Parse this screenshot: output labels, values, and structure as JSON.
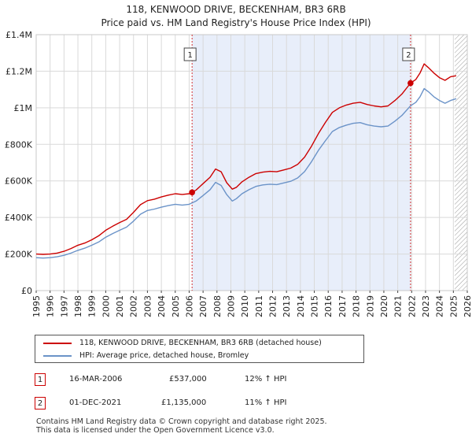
{
  "title_line1": "118, KENWOOD DRIVE, BECKENHAM, BR3 6RB",
  "title_line2": "Price paid vs. HM Land Registry's House Price Index (HPI)",
  "legend": {
    "series1": "118, KENWOOD DRIVE, BECKENHAM, BR3 6RB (detached house)",
    "series2": "HPI: Average price, detached house, Bromley"
  },
  "transactions": [
    {
      "label": "1",
      "date": "16-MAR-2006",
      "price": "£537,000",
      "hpi": "12% ↑ HPI"
    },
    {
      "label": "2",
      "date": "01-DEC-2021",
      "price": "£1,135,000",
      "hpi": "11% ↑ HPI"
    }
  ],
  "footer": {
    "line1": "Contains HM Land Registry data © Crown copyright and database right 2025.",
    "line2": "This data is licensed under the Open Government Licence v3.0."
  },
  "colors": {
    "property": "#cc0000",
    "hpi": "#6b93c8",
    "shade": "#e8eefa",
    "grid": "#d9d9d9"
  },
  "chart_data": {
    "type": "line",
    "title": "Price paid vs. HM Land Registry's House Price Index (HPI)",
    "xlabel": "",
    "ylabel": "",
    "xlim": [
      1995,
      2026
    ],
    "ylim": [
      0,
      1400000
    ],
    "xticks": [
      1995,
      1996,
      1997,
      1998,
      1999,
      2000,
      2001,
      2002,
      2003,
      2004,
      2005,
      2006,
      2007,
      2008,
      2009,
      2010,
      2011,
      2012,
      2013,
      2014,
      2015,
      2016,
      2017,
      2018,
      2019,
      2020,
      2021,
      2022,
      2023,
      2024,
      2025,
      2026
    ],
    "yticks": [
      0,
      200000,
      400000,
      600000,
      800000,
      1000000,
      1200000,
      1400000
    ],
    "ytick_labels": [
      "£0",
      "£200K",
      "£400K",
      "£600K",
      "£800K",
      "£1M",
      "£1.2M",
      "£1.4M"
    ],
    "grid": true,
    "shaded_range": [
      2006.21,
      2021.92
    ],
    "future_hatch_from": 2025.1,
    "series": [
      {
        "name": "118, KENWOOD DRIVE, BECKENHAM, BR3 6RB (detached house)",
        "color": "#cc0000",
        "x": [
          1995.0,
          1995.5,
          1996.0,
          1996.5,
          1997.0,
          1997.5,
          1998.0,
          1998.5,
          1999.0,
          1999.5,
          2000.0,
          2000.5,
          2001.0,
          2001.5,
          2002.0,
          2002.5,
          2003.0,
          2003.5,
          2004.0,
          2004.5,
          2005.0,
          2005.5,
          2006.0,
          2006.21,
          2006.5,
          2007.0,
          2007.5,
          2007.9,
          2008.3,
          2008.7,
          2009.1,
          2009.4,
          2009.8,
          2010.3,
          2010.8,
          2011.3,
          2011.8,
          2012.3,
          2012.8,
          2013.3,
          2013.8,
          2014.3,
          2014.8,
          2015.3,
          2015.8,
          2016.3,
          2016.8,
          2017.3,
          2017.8,
          2018.3,
          2018.8,
          2019.3,
          2019.8,
          2020.3,
          2020.8,
          2021.3,
          2021.92,
          2022.3,
          2022.6,
          2022.9,
          2023.2,
          2023.6,
          2024.0,
          2024.4,
          2024.8,
          2025.2
        ],
        "values": [
          200000,
          198000,
          200000,
          205000,
          215000,
          230000,
          248000,
          260000,
          278000,
          300000,
          330000,
          352000,
          372000,
          390000,
          428000,
          470000,
          492000,
          500000,
          512000,
          522000,
          530000,
          526000,
          530000,
          537000,
          550000,
          585000,
          620000,
          665000,
          650000,
          590000,
          555000,
          565000,
          595000,
          620000,
          640000,
          648000,
          652000,
          650000,
          660000,
          670000,
          690000,
          730000,
          790000,
          860000,
          920000,
          975000,
          1000000,
          1015000,
          1025000,
          1030000,
          1018000,
          1010000,
          1005000,
          1010000,
          1040000,
          1075000,
          1135000,
          1155000,
          1190000,
          1240000,
          1220000,
          1190000,
          1165000,
          1150000,
          1170000,
          1175000
        ]
      },
      {
        "name": "HPI: Average price, detached house, Bromley",
        "color": "#6b93c8",
        "x": [
          1995.0,
          1995.5,
          1996.0,
          1996.5,
          1997.0,
          1997.5,
          1998.0,
          1998.5,
          1999.0,
          1999.5,
          2000.0,
          2000.5,
          2001.0,
          2001.5,
          2002.0,
          2002.5,
          2003.0,
          2003.5,
          2004.0,
          2004.5,
          2005.0,
          2005.5,
          2006.0,
          2006.5,
          2007.0,
          2007.5,
          2007.9,
          2008.3,
          2008.7,
          2009.1,
          2009.4,
          2009.8,
          2010.3,
          2010.8,
          2011.3,
          2011.8,
          2012.3,
          2012.8,
          2013.3,
          2013.8,
          2014.3,
          2014.8,
          2015.3,
          2015.8,
          2016.3,
          2016.8,
          2017.3,
          2017.8,
          2018.3,
          2018.8,
          2019.3,
          2019.8,
          2020.3,
          2020.8,
          2021.3,
          2021.92,
          2022.3,
          2022.6,
          2022.9,
          2023.2,
          2023.6,
          2024.0,
          2024.4,
          2024.8,
          2025.2
        ],
        "values": [
          180000,
          178000,
          180000,
          185000,
          193000,
          205000,
          220000,
          232000,
          248000,
          266000,
          292000,
          312000,
          330000,
          347000,
          380000,
          418000,
          438000,
          446000,
          456000,
          465000,
          472000,
          468000,
          472000,
          490000,
          520000,
          552000,
          592000,
          575000,
          525000,
          490000,
          503000,
          530000,
          552000,
          570000,
          578000,
          582000,
          580000,
          589000,
          598000,
          616000,
          651000,
          705000,
          768000,
          820000,
          870000,
          892000,
          905000,
          915000,
          919000,
          907000,
          900000,
          896000,
          900000,
          927000,
          958000,
          1011000,
          1030000,
          1060000,
          1105000,
          1088000,
          1060000,
          1040000,
          1025000,
          1040000,
          1050000
        ]
      }
    ],
    "markers": [
      {
        "label": "1",
        "x": 2006.21,
        "y": 537000
      },
      {
        "label": "2",
        "x": 2021.92,
        "y": 1135000
      }
    ]
  }
}
